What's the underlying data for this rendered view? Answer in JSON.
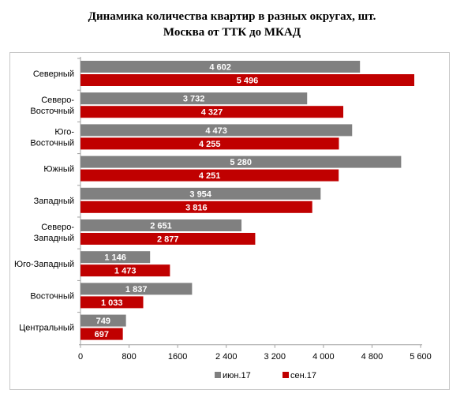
{
  "chart_data": {
    "type": "bar",
    "orientation": "horizontal",
    "title": "Динамика количества квартир в разных округах, шт.",
    "subtitle": "Москва от ТТК до МКАД",
    "categories": [
      [
        "Северный"
      ],
      [
        "Северо-",
        "Восточный"
      ],
      [
        "Юго-",
        "Восточный"
      ],
      [
        "Южный"
      ],
      [
        "Западный"
      ],
      [
        "Северо-",
        "Западный"
      ],
      [
        "Юго-Западный"
      ],
      [
        "Восточный"
      ],
      [
        "Центральный"
      ]
    ],
    "series": [
      {
        "name": "июн.17",
        "color": "#808080",
        "values": [
          4602,
          3732,
          4473,
          5280,
          3954,
          2651,
          1146,
          1837,
          749
        ],
        "labels": [
          "4 602",
          "3 732",
          "4 473",
          "5 280",
          "3 954",
          "2 651",
          "1 146",
          "1 837",
          "749"
        ]
      },
      {
        "name": "сен.17",
        "color": "#c00000",
        "values": [
          5496,
          4327,
          4255,
          4251,
          3816,
          2877,
          1473,
          1033,
          697
        ],
        "labels": [
          "5 496",
          "4 327",
          "4 255",
          "4 251",
          "3 816",
          "2 877",
          "1 473",
          "1 033",
          "697"
        ]
      }
    ],
    "xlim": [
      0,
      5600
    ],
    "xticks": [
      0,
      800,
      1600,
      2400,
      3200,
      4000,
      4800,
      5600
    ],
    "xtick_labels": [
      "0",
      "800",
      "1600",
      "2 400",
      "3 200",
      "4 000",
      "4 800",
      "5 600"
    ],
    "grid": false,
    "legend_position": "bottom"
  }
}
